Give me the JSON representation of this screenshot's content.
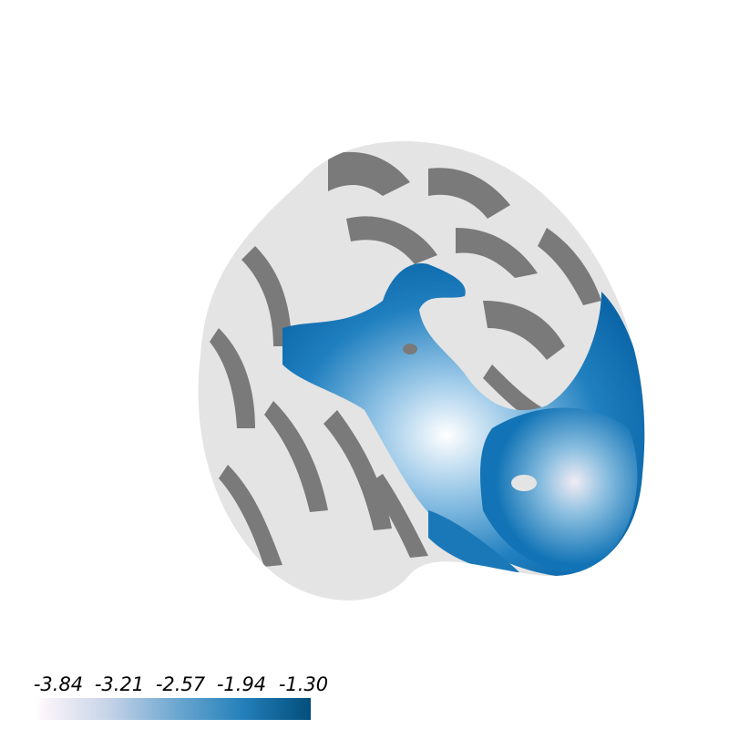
{
  "colorbar": {
    "ticks": [
      "-3.84",
      "-3.21",
      "-2.57",
      "-1.94",
      "-1.30"
    ]
  }
}
